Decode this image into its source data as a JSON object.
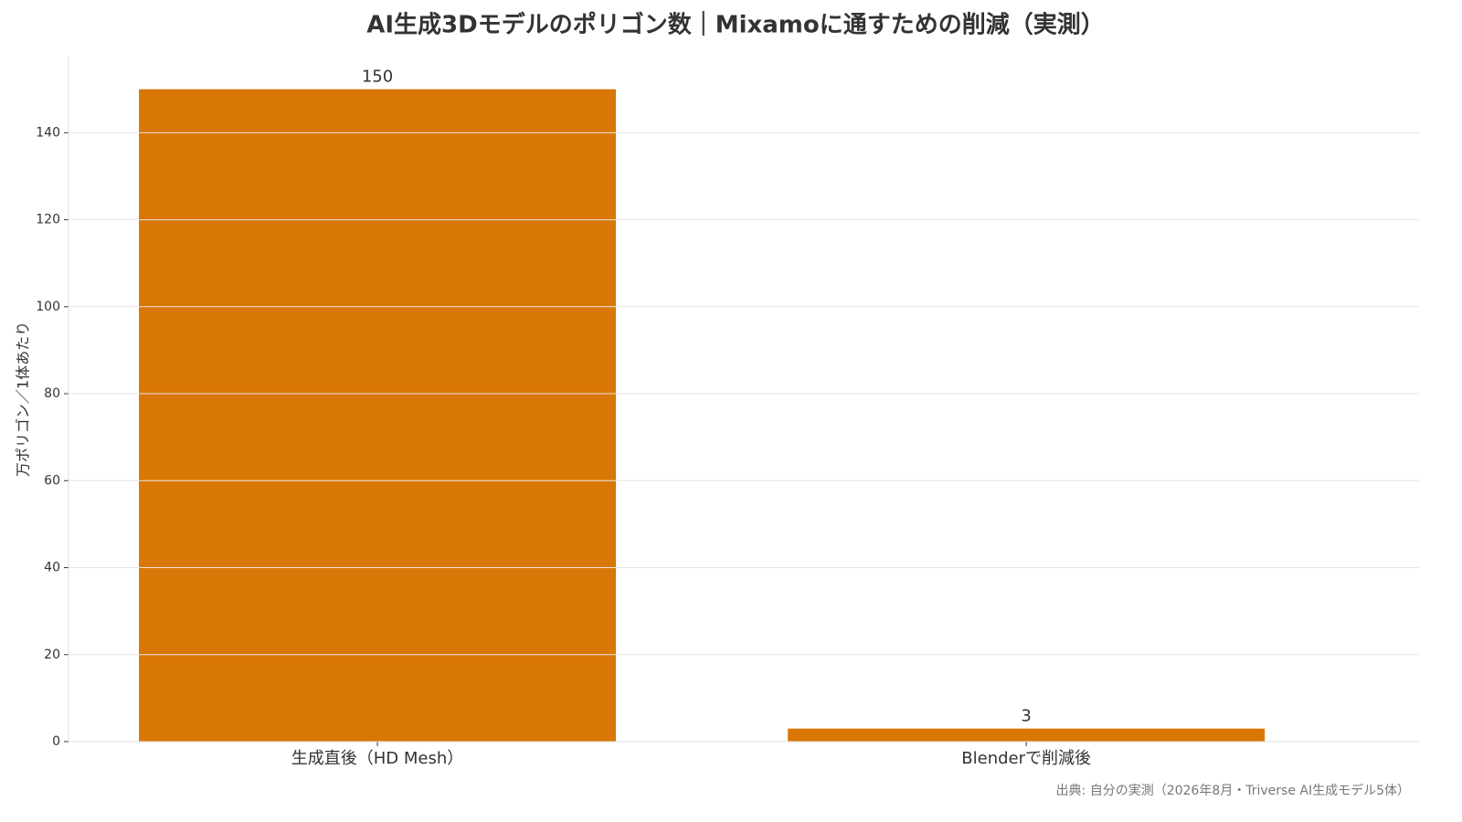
{
  "chart_data": {
    "type": "bar",
    "title": "AI生成3Dモデルのポリゴン数｜Mixamoに通すための削減（実測）",
    "y_label": "万ポリゴン／1体あたり",
    "categories": [
      "生成直後（HD Mesh）",
      "Blenderで削減後"
    ],
    "values": [
      150,
      3
    ],
    "color": "#d97706",
    "ylim": [
      0,
      157.5
    ],
    "yticks": [
      0,
      20,
      40,
      60,
      80,
      100,
      120,
      140
    ],
    "grid": true,
    "source": "出典: 自分の実測（2026年8月・Triverse AI生成モデル5体）"
  }
}
